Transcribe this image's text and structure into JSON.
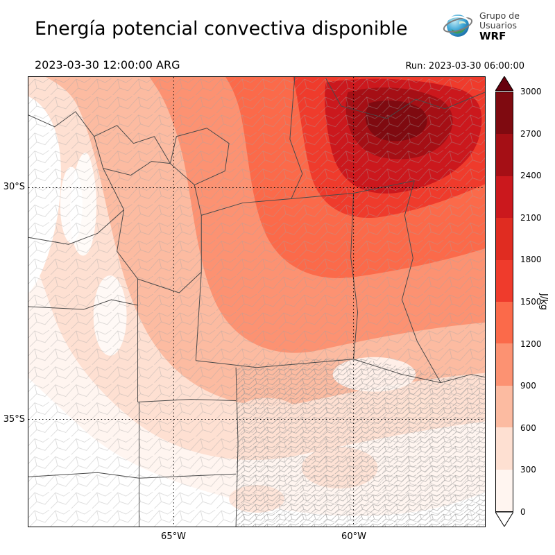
{
  "header": {
    "title": "Energía potencial convectiva disponible",
    "valid_time": "2023-03-30 12:00:00 ARG",
    "run_label": "Run: 2023-03-30 06:00:00",
    "logo": {
      "line1": "Grupo de",
      "line2": "Usuarios",
      "line3": "WRF"
    }
  },
  "chart_data": {
    "type": "heatmap",
    "title": "Energía potencial convectiva disponible",
    "variable": "CAPE (convective available potential energy)",
    "units": "J/kg",
    "valid_time": "2023-03-30 12:00:00 ARG",
    "run_time": "2023-03-30 06:00:00",
    "region": "Central and northern Argentina with province and department boundaries",
    "axes": {
      "lat_ticks": [
        "30°S",
        "35°S"
      ],
      "lon_ticks": [
        "65°W",
        "60°W"
      ],
      "grid": "dotted graticule at labeled parallels and meridians"
    },
    "colorbar": {
      "label": "J/kg",
      "levels": [
        0,
        300,
        600,
        900,
        1200,
        1500,
        1800,
        2100,
        2400,
        2700,
        3000
      ],
      "colors": [
        "#fff5f0",
        "#fee0d2",
        "#fcbba1",
        "#fc9272",
        "#fb6a4a",
        "#ef3b2c",
        "#e02c21",
        "#cb181d",
        "#a50f15",
        "#7f0a10"
      ],
      "over_color": "#67000d",
      "under_color": "#ffffff",
      "extend": "both",
      "orientation": "vertical-right"
    },
    "sample_points": [
      {
        "location": "far northeast maximum (around 27.5°S, 60°W)",
        "cape_jkg": 3000
      },
      {
        "location": "northeast quadrant (Chaco / northern Santa Fe)",
        "cape_jkg": 2100
      },
      {
        "location": "north-central (Santiago del Estero)",
        "cape_jkg": 1400
      },
      {
        "location": "central Córdoba",
        "cape_jkg": 900
      },
      {
        "location": "southern Santa Fe",
        "cape_jkg": 500
      },
      {
        "location": "Buenos Aires province (patchy)",
        "cape_jkg": 150
      },
      {
        "location": "Andes cordillera and southwest",
        "cape_jkg": 0
      }
    ]
  }
}
